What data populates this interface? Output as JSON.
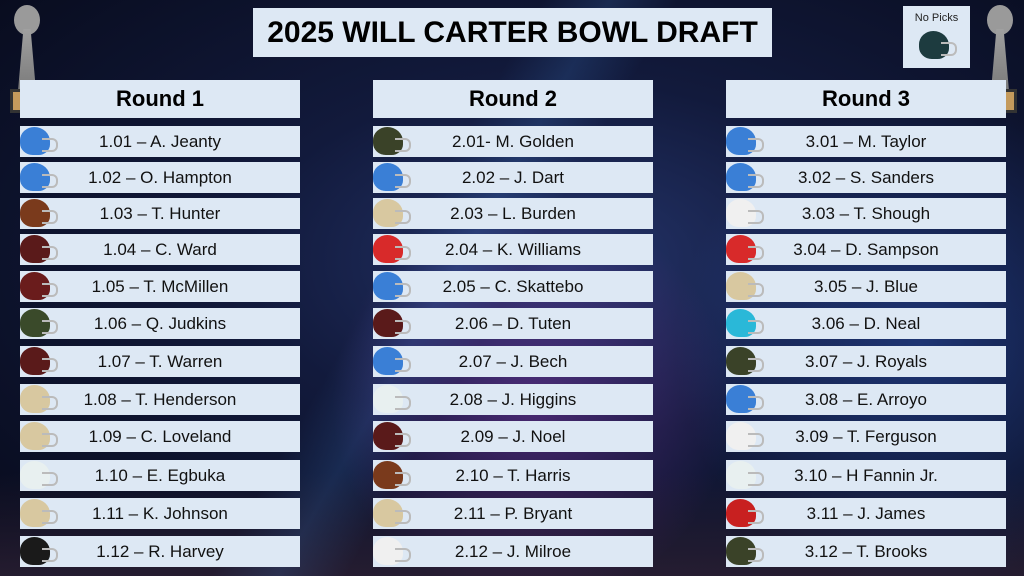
{
  "title": "2025 WILL CARTER BOWL DRAFT",
  "no_picks": {
    "label": "No Picks",
    "helmet": "#1d3b3f"
  },
  "rounds": [
    {
      "label": "Round 1",
      "picks": [
        {
          "text": "1.01 – A. Jeanty",
          "helmet": "#3a7fd6"
        },
        {
          "text": "1.02 – O. Hampton",
          "helmet": "#3a7fd6"
        },
        {
          "text": "1.03 – T. Hunter",
          "helmet": "#7a3a1c"
        },
        {
          "text": "1.04 – C. Ward",
          "helmet": "#5a1a1a"
        },
        {
          "text": "1.05 – T. McMillen",
          "helmet": "#6a1c1c"
        },
        {
          "text": "1.06 – Q. Judkins",
          "helmet": "#3a4a2a"
        },
        {
          "text": "1.07 – T. Warren",
          "helmet": "#5a1a1a"
        },
        {
          "text": "1.08 – T. Henderson",
          "helmet": "#d8c8a0"
        },
        {
          "text": "1.09 – C. Loveland",
          "helmet": "#d8c8a0"
        },
        {
          "text": "1.10 – E. Egbuka",
          "helmet": "#e8f0f0"
        },
        {
          "text": "1.11 – K. Johnson",
          "helmet": "#d8c8a0"
        },
        {
          "text": "1.12 – R. Harvey",
          "helmet": "#1a1a1a"
        }
      ]
    },
    {
      "label": "Round 2",
      "picks": [
        {
          "text": "2.01- M. Golden",
          "helmet": "#3a4228"
        },
        {
          "text": "2.02 – J. Dart",
          "helmet": "#3a7fd6"
        },
        {
          "text": "2.03 – L. Burden",
          "helmet": "#d8c8a0"
        },
        {
          "text": "2.04 – K. Williams",
          "helmet": "#d82a2a"
        },
        {
          "text": "2.05 – C. Skattebo",
          "helmet": "#3a7fd6"
        },
        {
          "text": "2.06 – D. Tuten",
          "helmet": "#5a1a1a"
        },
        {
          "text": "2.07 – J. Bech",
          "helmet": "#3a7fd6"
        },
        {
          "text": "2.08 – J. Higgins",
          "helmet": "#e8f0f0"
        },
        {
          "text": "2.09 – J. Noel",
          "helmet": "#5a1a1a"
        },
        {
          "text": "2.10 – T. Harris",
          "helmet": "#7a3a1c"
        },
        {
          "text": "2.11 – P. Bryant",
          "helmet": "#d8c8a0"
        },
        {
          "text": "2.12 – J. Milroe",
          "helmet": "#f0f0f0"
        }
      ]
    },
    {
      "label": "Round 3",
      "picks": [
        {
          "text": "3.01 – M. Taylor",
          "helmet": "#3a7fd6"
        },
        {
          "text": "3.02 – S. Sanders",
          "helmet": "#3a7fd6"
        },
        {
          "text": "3.03 – T. Shough",
          "helmet": "#f0f0f0"
        },
        {
          "text": "3.04 – D. Sampson",
          "helmet": "#d82a2a"
        },
        {
          "text": "3.05 – J. Blue",
          "helmet": "#d8c8a0"
        },
        {
          "text": "3.06 – D. Neal",
          "helmet": "#2ab8d8"
        },
        {
          "text": "3.07 – J. Royals",
          "helmet": "#3a4228"
        },
        {
          "text": "3.08 – E. Arroyo",
          "helmet": "#3a7fd6"
        },
        {
          "text": "3.09 – T. Ferguson",
          "helmet": "#f0f0f0"
        },
        {
          "text": "3.10 – H Fannin Jr.",
          "helmet": "#e8f0f0"
        },
        {
          "text": "3.11 – J. James",
          "helmet": "#c82020"
        },
        {
          "text": "3.12 – T. Brooks",
          "helmet": "#3a4228"
        }
      ]
    }
  ]
}
